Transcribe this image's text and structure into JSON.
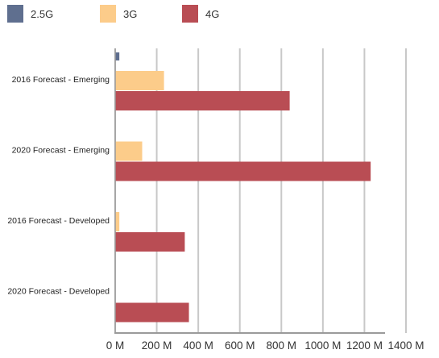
{
  "chart_data": {
    "type": "bar",
    "orientation": "horizontal",
    "title": "",
    "xlabel": "",
    "ylabel": "",
    "categories": [
      "2016 Forecast - Emerging",
      "2020 Forecast - Emerging",
      "2016 Forecast - Developed",
      "2020 Forecast - Developed"
    ],
    "series": [
      {
        "name": "2.5G",
        "color": "#5f6f8f",
        "values": [
          20,
          0,
          0,
          0
        ]
      },
      {
        "name": "3G",
        "color": "#fccc8a",
        "values": [
          235,
          130,
          20,
          0
        ]
      },
      {
        "name": "4G",
        "color": "#b94d54",
        "values": [
          840,
          1230,
          335,
          355
        ]
      }
    ],
    "xlim": [
      0,
      1400
    ],
    "x_ticks": [
      0,
      200,
      400,
      600,
      800,
      1000,
      1200,
      1400
    ],
    "x_tick_labels": [
      "0 M",
      "200 M",
      "400 M",
      "600 M",
      "800 M",
      "1000 M",
      "1200 M",
      "1400 M"
    ],
    "grid": true,
    "legend_position": "top-left"
  }
}
